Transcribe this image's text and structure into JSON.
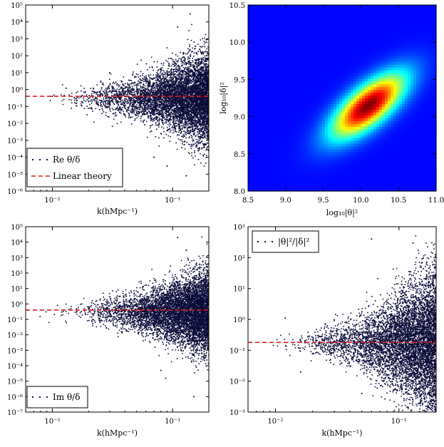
{
  "chart_data": [
    {
      "panel": "top-left",
      "type": "scatter",
      "xscale": "log",
      "yscale": "log",
      "xlim": [
        0.006,
        0.2
      ],
      "ylim": [
        1e-06,
        100000
      ],
      "xlabel": "k(hMpc⁻¹)",
      "x_ticks": [
        {
          "v": 0.01,
          "label": "10⁻²"
        },
        {
          "v": 0.1,
          "label": "10⁻¹"
        }
      ],
      "y_ticks": [
        {
          "v": 1e-06,
          "label": "10⁻⁶"
        },
        {
          "v": 1e-05,
          "label": "10⁻⁵"
        },
        {
          "v": 0.0001,
          "label": "10⁻⁴"
        },
        {
          "v": 0.001,
          "label": "10⁻³"
        },
        {
          "v": 0.01,
          "label": "10⁻²"
        },
        {
          "v": 0.1,
          "label": "10⁻¹"
        },
        {
          "v": 1,
          "label": "10⁰"
        },
        {
          "v": 10,
          "label": "10¹"
        },
        {
          "v": 100,
          "label": "10²"
        },
        {
          "v": 1000,
          "label": "10³"
        },
        {
          "v": 10000,
          "label": "10⁴"
        },
        {
          "v": 100000,
          "label": "10⁵"
        }
      ],
      "series": [
        {
          "name": "Re θ/δ",
          "kind": "points",
          "color": "#0d0d3a",
          "center": 0.3,
          "spread": "grows with k"
        },
        {
          "name": "Linear theory",
          "kind": "dashed-line",
          "color": "#e41a1c",
          "y": 0.4
        }
      ],
      "outliers": [
        [
          0.01,
          0.4
        ],
        [
          0.013,
          1.2
        ],
        [
          0.02,
          0.3
        ],
        [
          0.025,
          0.5
        ],
        [
          0.034,
          0.3
        ],
        [
          0.03,
          10
        ],
        [
          0.06,
          3
        ],
        [
          0.11,
          5000
        ],
        [
          0.14,
          30000
        ],
        [
          0.13,
          8e-06
        ],
        [
          0.07,
          0.0001
        ],
        [
          0.09,
          3e-05
        ]
      ],
      "legend": [
        "Re θ/δ",
        "Linear theory"
      ],
      "legend_position": "bottom-left"
    },
    {
      "panel": "top-right",
      "type": "heatmap",
      "xlabel": "log₁₀|θ|²",
      "ylabel": "log₁₀|δ|²",
      "xlim": [
        8.5,
        11.0
      ],
      "ylim": [
        8.0,
        10.5
      ],
      "x_ticks": [
        "8.5",
        "9.0",
        "9.5",
        "10.0",
        "10.5",
        "11.0"
      ],
      "y_ticks": [
        "8.0",
        "8.5",
        "9.0",
        "9.5",
        "10.0",
        "10.5"
      ],
      "peak": {
        "x": 10.1,
        "y": 9.15
      },
      "ridge_slope": 0.85,
      "colormap": "jet"
    },
    {
      "panel": "bottom-left",
      "type": "scatter",
      "xscale": "log",
      "yscale": "log",
      "xlim": [
        0.006,
        0.2
      ],
      "ylim": [
        1e-07,
        100000
      ],
      "xlabel": "k(hMpc⁻¹)",
      "x_ticks": [
        {
          "v": 0.01,
          "label": "10⁻²"
        },
        {
          "v": 0.1,
          "label": "10⁻¹"
        }
      ],
      "y_ticks": [
        {
          "v": 1e-07,
          "label": "10⁻⁷"
        },
        {
          "v": 1e-06,
          "label": "10⁻⁶"
        },
        {
          "v": 1e-05,
          "label": "10⁻⁵"
        },
        {
          "v": 0.0001,
          "label": "10⁻⁴"
        },
        {
          "v": 0.001,
          "label": "10⁻³"
        },
        {
          "v": 0.01,
          "label": "10⁻²"
        },
        {
          "v": 0.1,
          "label": "10⁻¹"
        },
        {
          "v": 1,
          "label": "10⁰"
        },
        {
          "v": 10,
          "label": "10¹"
        },
        {
          "v": 100,
          "label": "10²"
        },
        {
          "v": 1000,
          "label": "10³"
        },
        {
          "v": 10000,
          "label": "10⁴"
        },
        {
          "v": 100000,
          "label": "10⁵"
        }
      ],
      "series": [
        {
          "name": "Im θ/δ",
          "kind": "points",
          "color": "#0d0d3a",
          "center": 0.3,
          "spread": "grows with k"
        },
        {
          "name": "Linear theory",
          "kind": "dashed-line",
          "color": "#e41a1c",
          "y": 0.4
        }
      ],
      "outliers": [
        [
          0.012,
          0.3
        ],
        [
          0.02,
          0.5
        ],
        [
          0.025,
          0.3
        ],
        [
          0.03,
          3
        ],
        [
          0.11,
          20000
        ],
        [
          0.13,
          3000
        ],
        [
          0.15,
          1e-06
        ],
        [
          0.08,
          5e-05
        ]
      ],
      "legend": [
        "Im θ/δ"
      ],
      "legend_position": "bottom-left"
    },
    {
      "panel": "bottom-right",
      "type": "scatter",
      "xscale": "log",
      "yscale": "log",
      "xlim": [
        0.006,
        0.2
      ],
      "ylim": [
        0.001,
        1000
      ],
      "xlabel": "k(hMpc⁻¹)",
      "x_ticks": [
        {
          "v": 0.01,
          "label": "10⁻²"
        },
        {
          "v": 0.1,
          "label": "10⁻¹"
        }
      ],
      "y_ticks": [
        {
          "v": 0.001,
          "label": "10⁻³"
        },
        {
          "v": 0.01,
          "label": "10⁻²"
        },
        {
          "v": 0.1,
          "label": "10⁻¹"
        },
        {
          "v": 1,
          "label": "10⁰"
        },
        {
          "v": 10,
          "label": "10¹"
        },
        {
          "v": 100,
          "label": "10²"
        },
        {
          "v": 1000,
          "label": "10³"
        }
      ],
      "series": [
        {
          "name": "|θ|²/|δ|²",
          "kind": "points",
          "color": "#0d0d3a",
          "center": 0.17,
          "spread": "grows with k"
        },
        {
          "name": "Linear theory",
          "kind": "dashed-line",
          "color": "#e41a1c",
          "y": 0.18
        }
      ],
      "outliers": [
        [
          0.06,
          400
        ],
        [
          0.012,
          1.1
        ],
        [
          0.016,
          0.02
        ],
        [
          0.05,
          0.004
        ],
        [
          0.13,
          300
        ],
        [
          0.15,
          0.002
        ]
      ],
      "legend": [
        "|θ|²/|δ|²"
      ],
      "legend_position": "top-left"
    }
  ]
}
